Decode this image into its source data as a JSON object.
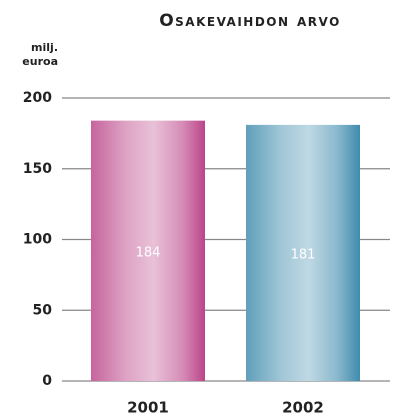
{
  "chart_data": {
    "type": "bar",
    "title": "Osakevaihdon arvo",
    "y_label": "milj. euroa",
    "categories": [
      "2001",
      "2002"
    ],
    "values": [
      184,
      181
    ],
    "colors": [
      "#b4307c",
      "#2a7fa4"
    ],
    "ylim": [
      0,
      200
    ],
    "yticks": [
      0,
      50,
      100,
      150,
      200
    ],
    "grid": true
  }
}
